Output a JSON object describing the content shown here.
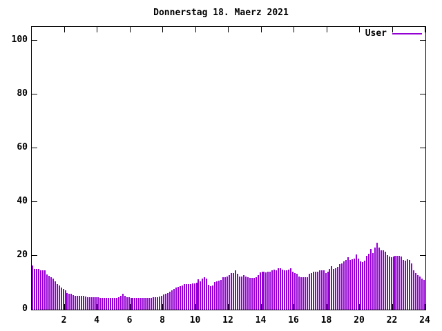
{
  "title": "Donnerstag 18. Maerz 2021",
  "legend": {
    "label": "User",
    "position": "top-right"
  },
  "colors": {
    "bar": "#9400d3",
    "border": "#000000",
    "text": "#000000",
    "background": "#ffffff"
  },
  "axes": {
    "y_ticks": [
      0,
      20,
      40,
      60,
      80,
      100
    ],
    "x_ticks": [
      2,
      4,
      6,
      8,
      10,
      12,
      14,
      16,
      18,
      20,
      22,
      24
    ]
  },
  "chart_data": {
    "type": "bar",
    "title": "Donnerstag 18. Maerz 2021",
    "xlabel": "",
    "ylabel": "",
    "x_unit": "hour of day",
    "xlim": [
      0,
      24
    ],
    "ylim": [
      0,
      105
    ],
    "grid": false,
    "legend_position": "top-right",
    "x_start": 0,
    "x_step_hours": 0.125,
    "series": [
      {
        "name": "User",
        "color": "#9400d3",
        "style": "impulses",
        "values": [
          16.3,
          15.0,
          15.0,
          15.0,
          14.6,
          14.6,
          14.6,
          13.0,
          12.5,
          12.0,
          11.5,
          10.5,
          9.5,
          9.0,
          8.2,
          7.8,
          7.2,
          6.2,
          5.9,
          5.9,
          5.5,
          5.1,
          5.1,
          5.1,
          5.1,
          5.1,
          4.9,
          4.6,
          4.6,
          4.6,
          4.6,
          4.6,
          4.6,
          4.4,
          4.4,
          4.4,
          4.4,
          4.4,
          4.4,
          4.4,
          4.4,
          4.4,
          4.6,
          5.1,
          5.9,
          5.1,
          4.6,
          4.6,
          4.4,
          4.4,
          4.4,
          4.4,
          4.4,
          4.4,
          4.4,
          4.4,
          4.4,
          4.4,
          4.4,
          4.6,
          4.6,
          4.6,
          4.8,
          5.1,
          5.6,
          5.9,
          6.2,
          6.7,
          7.2,
          7.7,
          8.2,
          8.5,
          8.7,
          9.0,
          9.5,
          9.5,
          9.5,
          9.5,
          9.7,
          9.7,
          10.0,
          11.3,
          10.5,
          11.5,
          12.0,
          11.5,
          9.2,
          8.7,
          9.0,
          10.3,
          10.5,
          10.8,
          11.0,
          12.0,
          12.0,
          12.3,
          12.8,
          13.6,
          13.6,
          14.6,
          13.3,
          12.3,
          12.3,
          12.8,
          12.3,
          12.0,
          11.8,
          11.8,
          11.8,
          12.0,
          12.8,
          13.8,
          14.1,
          14.1,
          13.8,
          14.1,
          14.1,
          14.6,
          14.9,
          14.6,
          15.4,
          15.4,
          14.9,
          14.6,
          14.6,
          14.9,
          15.4,
          14.1,
          13.6,
          13.3,
          12.3,
          12.0,
          12.0,
          12.0,
          12.0,
          13.3,
          13.6,
          14.1,
          14.1,
          14.1,
          14.6,
          14.6,
          14.6,
          13.6,
          14.1,
          15.0,
          16.2,
          15.2,
          15.5,
          16.0,
          16.8,
          17.2,
          17.9,
          18.5,
          19.5,
          18.5,
          18.7,
          19.0,
          20.5,
          19.0,
          18.0,
          17.7,
          18.2,
          19.9,
          20.8,
          22.6,
          21.0,
          23.1,
          24.9,
          23.1,
          22.1,
          22.1,
          21.5,
          20.3,
          19.7,
          19.5,
          19.7,
          20.0,
          20.0,
          19.9,
          19.7,
          18.5,
          18.2,
          18.7,
          18.5,
          17.2,
          14.5,
          13.6,
          12.8,
          12.3,
          11.5,
          11.0
        ]
      }
    ]
  }
}
